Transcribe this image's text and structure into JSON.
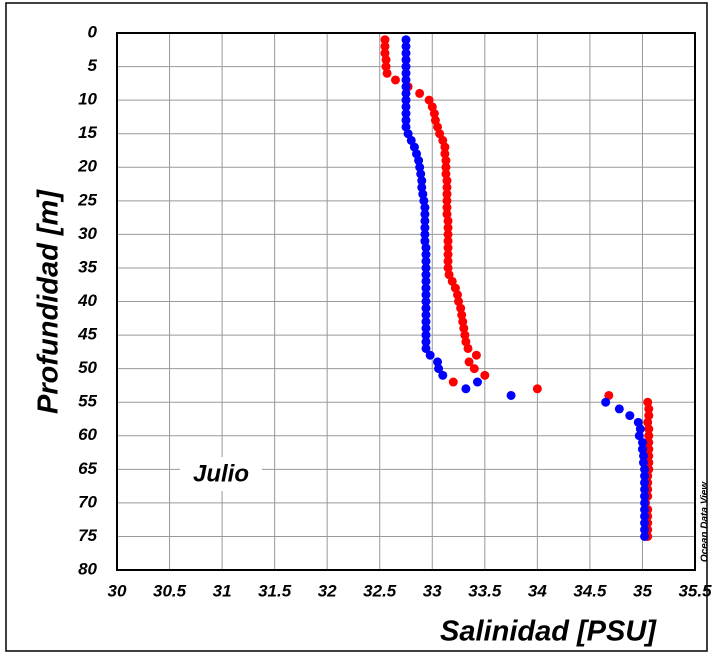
{
  "chart_data": {
    "type": "scatter",
    "x_label": "Salinidad [PSU]",
    "y_label": "Profundidad [m]",
    "annotations": [
      "Julio",
      "Ocean Data View"
    ],
    "xlim": [
      30,
      35.5
    ],
    "xticks": [
      30,
      30.5,
      31,
      31.5,
      32,
      32.5,
      33,
      33.5,
      34,
      34.5,
      35,
      35.5
    ],
    "ylim": [
      0,
      80
    ],
    "yticks": [
      0,
      5,
      10,
      15,
      20,
      25,
      30,
      35,
      40,
      45,
      50,
      55,
      60,
      65,
      70,
      75,
      80
    ],
    "y_inverted": true,
    "grid": true,
    "series": [
      {
        "color": "#ff0000",
        "x": [
          32.55,
          32.55,
          32.55,
          32.56,
          32.56,
          32.57,
          32.65,
          32.77,
          32.88,
          32.97,
          33.0,
          33.02,
          33.03,
          33.05,
          33.07,
          33.1,
          33.12,
          33.12,
          33.13,
          33.13,
          33.13,
          33.14,
          33.14,
          33.14,
          33.14,
          33.14,
          33.14,
          33.15,
          33.15,
          33.15,
          33.15,
          33.15,
          33.15,
          33.15,
          33.15,
          33.16,
          33.19,
          33.22,
          33.24,
          33.25,
          33.27,
          33.28,
          33.29,
          33.3,
          33.31,
          33.32,
          33.34,
          33.42,
          33.35,
          33.4,
          33.5,
          33.2,
          34.0,
          34.68,
          35.05,
          35.06,
          35.06,
          35.05,
          35.06,
          35.06,
          35.06,
          35.06,
          35.06,
          35.06,
          35.06,
          35.05,
          35.05,
          35.05,
          35.05,
          35.03,
          35.05,
          35.05,
          35.05,
          35.05,
          35.05
        ],
        "values": [
          1,
          2,
          3,
          4,
          5,
          6,
          7,
          8,
          9,
          10,
          11,
          12,
          13,
          14,
          15,
          16,
          17,
          18,
          19,
          20,
          21,
          22,
          23,
          24,
          25,
          26,
          27,
          28,
          29,
          30,
          31,
          32,
          33,
          34,
          35,
          36,
          37,
          38,
          39,
          40,
          41,
          42,
          43,
          44,
          45,
          46,
          47,
          48,
          49,
          50,
          51,
          52,
          53,
          54,
          55,
          56,
          57,
          58,
          59,
          60,
          61,
          62,
          63,
          64,
          65,
          66,
          67,
          68,
          69,
          70,
          71,
          72,
          73,
          74,
          75
        ]
      },
      {
        "color": "#0000ff",
        "x": [
          32.75,
          32.75,
          32.75,
          32.75,
          32.75,
          32.75,
          32.75,
          32.75,
          32.75,
          32.75,
          32.75,
          32.75,
          32.75,
          32.75,
          32.77,
          32.8,
          32.83,
          32.85,
          32.87,
          32.88,
          32.89,
          32.9,
          32.9,
          32.91,
          32.92,
          32.93,
          32.93,
          32.93,
          32.93,
          32.93,
          32.93,
          32.94,
          32.94,
          32.94,
          32.94,
          32.94,
          32.94,
          32.94,
          32.94,
          32.94,
          32.94,
          32.94,
          32.94,
          32.94,
          32.94,
          32.94,
          32.94,
          32.98,
          33.05,
          33.06,
          33.1,
          33.43,
          33.32,
          33.75,
          34.65,
          34.78,
          34.88,
          34.96,
          34.98,
          34.97,
          35.0,
          35.0,
          35.01,
          35.01,
          35.02,
          35.02,
          35.02,
          35.02,
          35.02,
          35.02,
          35.02,
          35.02,
          35.02,
          35.02,
          35.02
        ],
        "values": [
          1,
          2,
          3,
          4,
          5,
          6,
          7,
          8,
          9,
          10,
          11,
          12,
          13,
          14,
          15,
          16,
          17,
          18,
          19,
          20,
          21,
          22,
          23,
          24,
          25,
          26,
          27,
          28,
          29,
          30,
          31,
          32,
          33,
          34,
          35,
          36,
          37,
          38,
          39,
          40,
          41,
          42,
          43,
          44,
          45,
          46,
          47,
          48,
          49,
          50,
          51,
          52,
          53,
          54,
          55,
          56,
          57,
          58,
          59,
          60,
          61,
          62,
          63,
          64,
          65,
          66,
          67,
          68,
          69,
          70,
          71,
          72,
          73,
          74,
          75
        ]
      }
    ]
  }
}
